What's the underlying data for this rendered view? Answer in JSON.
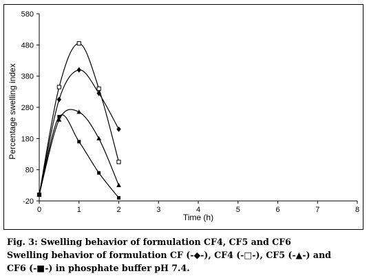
{
  "chart_data": {
    "type": "line",
    "xlabel": "Time (h)",
    "ylabel": "Percentage swelling index",
    "xlim": [
      0,
      8
    ],
    "ylim": [
      -20,
      580
    ],
    "x_ticks": [
      0,
      1,
      2,
      3,
      4,
      5,
      6,
      7,
      8
    ],
    "y_ticks": [
      -20,
      80,
      180,
      280,
      380,
      480,
      580
    ],
    "grid": false,
    "legend": "none",
    "series": [
      {
        "name": "CF",
        "marker": "diamond-filled",
        "color": "#000000",
        "points": [
          [
            0,
            0
          ],
          [
            0.5,
            305
          ],
          [
            1,
            400
          ],
          [
            1.5,
            325
          ],
          [
            2,
            210
          ]
        ]
      },
      {
        "name": "CF4",
        "marker": "square-open",
        "color": "#000000",
        "points": [
          [
            0,
            0
          ],
          [
            0.5,
            345
          ],
          [
            1,
            485
          ],
          [
            1.5,
            340
          ],
          [
            2,
            105
          ]
        ]
      },
      {
        "name": "CF5",
        "marker": "triangle-filled",
        "color": "#000000",
        "points": [
          [
            0,
            0
          ],
          [
            0.5,
            240
          ],
          [
            1,
            265
          ],
          [
            1.5,
            180
          ],
          [
            2,
            30
          ]
        ]
      },
      {
        "name": "CF6",
        "marker": "square-filled",
        "color": "#000000",
        "points": [
          [
            0,
            0
          ],
          [
            0.5,
            250
          ],
          [
            1,
            170
          ],
          [
            1.5,
            70
          ],
          [
            2,
            -10
          ]
        ]
      }
    ]
  },
  "caption": {
    "line1": "Fig. 3: Swelling behavior of formulation CF4, CF5 and CF6",
    "line2": "Swelling behavior of formulation CF (-◆-), CF4 (-□-), CF5 (-▲-) and",
    "line3": "CF6 (-■-) in phosphate buffer pH 7.4."
  }
}
